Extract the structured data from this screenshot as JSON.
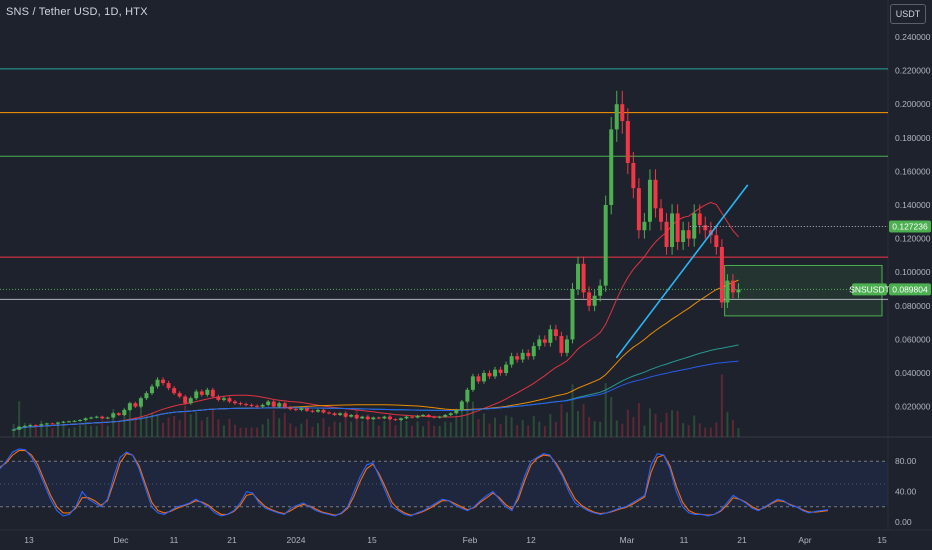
{
  "header": {
    "title": "SNS / Tether USD, 1D, HTX",
    "currency_button": "USDT"
  },
  "price_tags": {
    "symbol": "SNSUSDT",
    "last_price": "0.089804",
    "level_price": "0.127236"
  },
  "colors": {
    "background": "#1e222d",
    "up_candle": "#4caf50",
    "down_candle": "#f23645",
    "level_green": "#26a69a",
    "level_orange": "#ff9800",
    "level_red": "#f23645",
    "trendline": "#29b6f6",
    "stoch_k": "#2962ff",
    "stoch_d": "#ff6d00"
  },
  "chart_data": {
    "type": "candlestick",
    "title": "SNS / Tether USD, 1D, HTX",
    "y_axis": {
      "unit": "USDT",
      "ticks": [
        "0.240000",
        "0.220000",
        "0.200000",
        "0.180000",
        "0.160000",
        "0.140000",
        "0.120000",
        "0.100000",
        "0.080000",
        "0.060000",
        "0.040000",
        "0.020000"
      ]
    },
    "x_axis": {
      "ticks": [
        "13",
        "Dec",
        "11",
        "21",
        "2024",
        "15",
        "Feb",
        "12",
        "Mar",
        "11",
        "21",
        "Apr",
        "15"
      ]
    },
    "horizontal_levels": [
      {
        "price": 0.221,
        "color": "#26a69a"
      },
      {
        "price": 0.195,
        "color": "#ff9800"
      },
      {
        "price": 0.169,
        "color": "#4caf50"
      },
      {
        "price": 0.109,
        "color": "#f23645"
      },
      {
        "price": 0.0838,
        "color": "#b2b5be"
      }
    ],
    "dotted_level": 0.127236,
    "last_price": 0.089804,
    "zone": {
      "date_start": "2024-03-18",
      "date_end": "2024-04-16",
      "price_low": 0.074,
      "price_high": 0.104
    },
    "trendline": {
      "from": [
        "2024-02-28",
        0.049
      ],
      "to": [
        "2024-03-22",
        0.152
      ]
    },
    "candles_close": [
      0.0063,
      0.008,
      0.0085,
      0.009,
      0.0088,
      0.0095,
      0.01,
      0.0098,
      0.0105,
      0.011,
      0.0112,
      0.0115,
      0.012,
      0.013,
      0.0135,
      0.014,
      0.013,
      0.0135,
      0.016,
      0.015,
      0.018,
      0.022,
      0.02,
      0.025,
      0.028,
      0.032,
      0.036,
      0.034,
      0.031,
      0.028,
      0.026,
      0.022,
      0.025,
      0.029,
      0.027,
      0.03,
      0.026,
      0.024,
      0.025,
      0.023,
      0.022,
      0.0215,
      0.021,
      0.0205,
      0.02,
      0.021,
      0.023,
      0.02,
      0.022,
      0.0195,
      0.0185,
      0.018,
      0.019,
      0.0175,
      0.017,
      0.018,
      0.0165,
      0.016,
      0.015,
      0.016,
      0.014,
      0.015,
      0.013,
      0.014,
      0.0125,
      0.0135,
      0.013,
      0.014,
      0.0125,
      0.012,
      0.013,
      0.014,
      0.0135,
      0.0145,
      0.015,
      0.014,
      0.0135,
      0.014,
      0.015,
      0.016,
      0.018,
      0.023,
      0.03,
      0.038,
      0.035,
      0.04,
      0.038,
      0.042,
      0.04,
      0.045,
      0.05,
      0.048,
      0.052,
      0.05,
      0.056,
      0.06,
      0.058,
      0.066,
      0.062,
      0.052,
      0.06,
      0.09,
      0.105,
      0.088,
      0.08,
      0.086,
      0.092,
      0.14,
      0.185,
      0.2,
      0.19,
      0.165,
      0.15,
      0.125,
      0.13,
      0.155,
      0.138,
      0.13,
      0.115,
      0.135,
      0.118,
      0.125,
      0.12,
      0.135,
      0.128,
      0.125,
      0.122,
      0.115,
      0.082,
      0.095,
      0.088,
      0.0898
    ],
    "moving_averages": [
      {
        "name": "MA 20",
        "color": "#f23645"
      },
      {
        "name": "MA 50",
        "color": "#ff9800"
      },
      {
        "name": "MA 100",
        "color": "#26a69a"
      },
      {
        "name": "MA 200",
        "color": "#2962ff"
      }
    ],
    "stochastic": {
      "ticks": [
        "80.00",
        "40.00",
        "0.00"
      ],
      "band": [
        20,
        80
      ],
      "k": [
        70,
        80,
        92,
        96,
        95,
        85,
        70,
        50,
        30,
        15,
        8,
        10,
        20,
        40,
        30,
        25,
        20,
        30,
        60,
        85,
        92,
        88,
        70,
        45,
        20,
        12,
        10,
        15,
        20,
        22,
        25,
        30,
        25,
        20,
        12,
        8,
        10,
        15,
        25,
        40,
        38,
        25,
        18,
        15,
        12,
        10,
        18,
        22,
        25,
        20,
        15,
        12,
        10,
        8,
        12,
        20,
        40,
        60,
        75,
        78,
        60,
        40,
        20,
        15,
        10,
        8,
        12,
        15,
        20,
        25,
        30,
        28,
        22,
        18,
        15,
        20,
        28,
        35,
        40,
        30,
        20,
        15,
        35,
        60,
        80,
        85,
        90,
        88,
        75,
        60,
        40,
        25,
        20,
        15,
        12,
        10,
        12,
        15,
        18,
        20,
        25,
        30,
        35,
        75,
        90,
        88,
        70,
        40,
        20,
        12,
        10,
        10,
        8,
        10,
        15,
        25,
        35,
        30,
        25,
        18,
        15,
        20,
        25,
        30,
        28,
        22,
        20,
        15,
        12,
        14,
        15,
        16
      ],
      "d": [
        72,
        78,
        88,
        94,
        94,
        88,
        75,
        55,
        35,
        20,
        12,
        12,
        18,
        32,
        32,
        28,
        22,
        28,
        52,
        78,
        90,
        88,
        74,
        50,
        26,
        15,
        12,
        14,
        18,
        21,
        24,
        28,
        26,
        22,
        15,
        10,
        10,
        14,
        22,
        35,
        37,
        28,
        20,
        16,
        13,
        11,
        15,
        20,
        23,
        21,
        17,
        13,
        11,
        9,
        11,
        18,
        34,
        54,
        70,
        76,
        63,
        45,
        26,
        17,
        12,
        9,
        11,
        14,
        18,
        23,
        28,
        28,
        24,
        20,
        16,
        19,
        26,
        32,
        38,
        32,
        23,
        17,
        30,
        54,
        75,
        84,
        88,
        87,
        77,
        63,
        45,
        30,
        22,
        17,
        13,
        11,
        12,
        14,
        17,
        19,
        23,
        28,
        33,
        65,
        85,
        88,
        74,
        47,
        26,
        15,
        11,
        10,
        9,
        10,
        14,
        22,
        32,
        30,
        26,
        20,
        16,
        19,
        24,
        28,
        27,
        23,
        20,
        16,
        13,
        13,
        14,
        15
      ]
    }
  }
}
